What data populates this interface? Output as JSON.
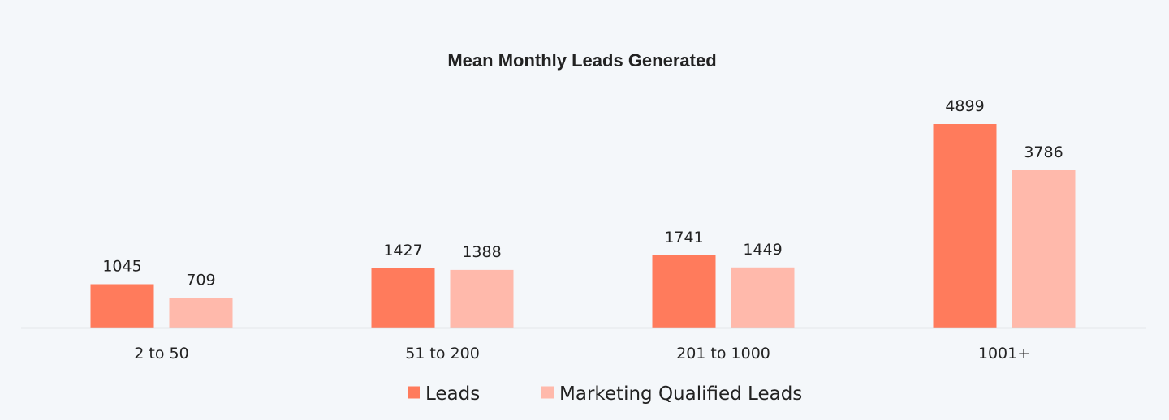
{
  "chart_data": {
    "type": "bar",
    "title": "Mean Monthly Leads Generated",
    "xlabel": "",
    "ylabel": "",
    "categories": [
      "2 to 50",
      "51 to 200",
      "201 to 1000",
      "1001+"
    ],
    "series": [
      {
        "name": "Leads",
        "values": [
          1045,
          1427,
          1741,
          4899
        ],
        "color": "#ff7b5c"
      },
      {
        "name": "Marketing Qualified Leads",
        "values": [
          709,
          1388,
          1449,
          3786
        ],
        "color": "#ffb9ab"
      }
    ],
    "ylim": [
      0,
      5000
    ],
    "grid": false,
    "data_labels": true,
    "legend_position": "bottom"
  },
  "colors": {
    "background": "#f4f7fa",
    "axis": "#d4d7da",
    "text": "#222222"
  }
}
